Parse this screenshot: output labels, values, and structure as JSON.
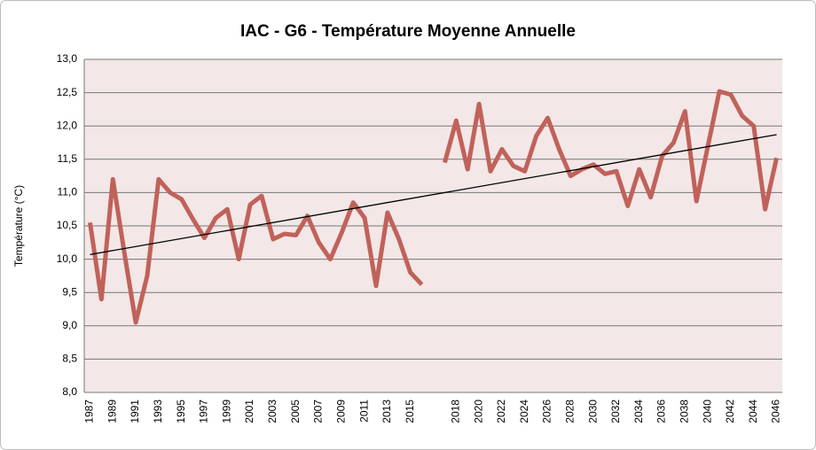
{
  "chart_data": {
    "type": "line",
    "title": "IAC - G6 - Température Moyenne Annuelle",
    "y_label": "Température (°C)",
    "categories": [
      "1987",
      null,
      "1989",
      null,
      "1991",
      null,
      "1993",
      null,
      "1995",
      null,
      "1997",
      null,
      "1999",
      null,
      "2001",
      null,
      "2003",
      null,
      "2005",
      null,
      "2007",
      null,
      "2009",
      null,
      "2011",
      null,
      "2013",
      null,
      "2015",
      null,
      null,
      null,
      "2018",
      null,
      "2020",
      null,
      "2022",
      null,
      "2024",
      null,
      "2026",
      null,
      "2028",
      null,
      "2030",
      null,
      "2032",
      null,
      "2034",
      null,
      "2036",
      null,
      "2038",
      null,
      "2040",
      null,
      "2042",
      null,
      "2044",
      null,
      "2046"
    ],
    "series": [
      {
        "color": "#c0625a",
        "values": [
          10.55,
          9.4,
          11.2,
          10.1,
          9.05,
          9.75,
          11.2,
          11.0,
          10.9,
          10.6,
          10.32,
          10.62,
          10.75,
          10.0,
          10.82,
          10.95,
          10.3,
          10.38,
          10.36,
          10.65,
          10.25,
          10.0,
          10.4,
          10.85,
          10.62,
          9.6,
          10.7,
          10.3,
          9.8,
          9.62,
          null,
          11.45,
          12.08,
          11.35,
          12.33,
          11.32,
          11.65,
          11.4,
          11.32,
          11.85,
          12.12,
          11.65,
          11.25,
          11.35,
          11.42,
          11.28,
          11.32,
          10.8,
          11.35,
          10.93,
          11.55,
          11.75,
          12.22,
          10.87,
          11.7,
          12.52,
          12.47,
          12.15,
          12.0,
          10.75,
          11.52
        ]
      }
    ],
    "trendline": {
      "start": 10.07,
      "end": 11.87,
      "color": "#000000"
    },
    "ylim": [
      8,
      13
    ],
    "yticks": [
      {
        "value": 8,
        "label": "8,0"
      },
      {
        "value": 8.5,
        "label": "8,5"
      },
      {
        "value": 9,
        "label": "9,0"
      },
      {
        "value": 9.5,
        "label": "9,5"
      },
      {
        "value": 10,
        "label": "10,0"
      },
      {
        "value": 10.5,
        "label": "10,5"
      },
      {
        "value": 11,
        "label": "11,0"
      },
      {
        "value": 11.5,
        "label": "11,5"
      },
      {
        "value": 12,
        "label": "12,0"
      },
      {
        "value": 12.5,
        "label": "12,5"
      },
      {
        "value": 13,
        "label": "13,0"
      }
    ],
    "grid": true
  }
}
